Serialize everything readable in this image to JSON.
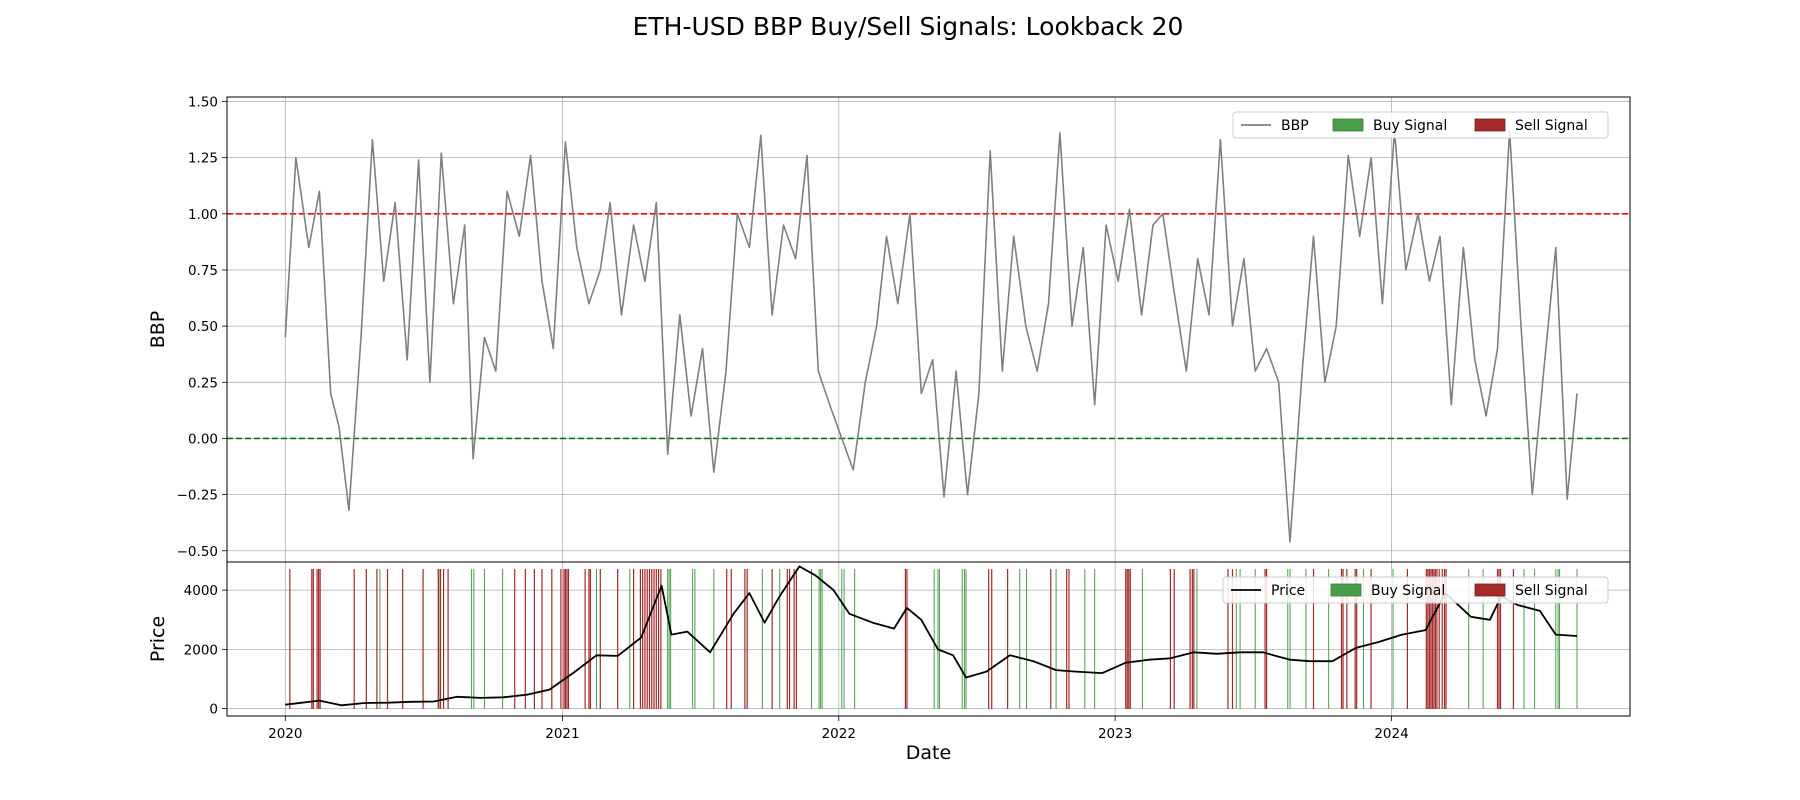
{
  "chart_data": [
    {
      "type": "line",
      "title": "ETH-USD BBP Buy/Sell Signals: Lookback 20",
      "ylabel": "BBP",
      "xlabel": "",
      "xlim": [
        "2019-10-16",
        "2024-11-11"
      ],
      "ylim": [
        -0.55,
        1.52
      ],
      "yticks": [
        1.5,
        1.25,
        1.0,
        0.75,
        0.5,
        0.25,
        0.0,
        -0.25,
        -0.5
      ],
      "ytick_labels": [
        "1.50",
        "1.25",
        "1.00",
        "0.75",
        "0.50",
        "0.25",
        "0.00",
        "−0.25",
        "−0.50"
      ],
      "grid": true,
      "legend_position": "top-right",
      "legend": [
        "BBP",
        "Buy Signal",
        "Sell Signal"
      ],
      "reference_lines": [
        {
          "y": 1.0,
          "color": "#ff0000",
          "style": "dashed"
        },
        {
          "y": 0.0,
          "color": "#008000",
          "style": "dashed"
        }
      ],
      "series": [
        {
          "name": "BBP",
          "color": "#808080",
          "x": [
            "2020-01-01",
            "2020-01-15",
            "2020-02-01",
            "2020-02-15",
            "2020-03-01",
            "2020-03-12",
            "2020-03-25",
            "2020-04-10",
            "2020-04-25",
            "2020-05-10",
            "2020-05-25",
            "2020-06-10",
            "2020-06-25",
            "2020-07-10",
            "2020-07-25",
            "2020-08-10",
            "2020-08-25",
            "2020-09-05",
            "2020-09-20",
            "2020-10-05",
            "2020-10-20",
            "2020-11-05",
            "2020-11-20",
            "2020-12-05",
            "2020-12-20",
            "2021-01-05",
            "2021-01-20",
            "2021-02-05",
            "2021-02-20",
            "2021-03-05",
            "2021-03-20",
            "2021-04-05",
            "2021-04-20",
            "2021-05-05",
            "2021-05-20",
            "2021-06-05",
            "2021-06-20",
            "2021-07-05",
            "2021-07-20",
            "2021-08-05",
            "2021-08-20",
            "2021-09-05",
            "2021-09-20",
            "2021-10-05",
            "2021-10-20",
            "2021-11-05",
            "2021-11-20",
            "2021-12-05",
            "2021-12-20",
            "2022-01-05",
            "2022-01-20",
            "2022-02-05",
            "2022-02-20",
            "2022-03-05",
            "2022-03-20",
            "2022-04-05",
            "2022-04-20",
            "2022-05-05",
            "2022-05-20",
            "2022-06-05",
            "2022-06-20",
            "2022-07-05",
            "2022-07-20",
            "2022-08-05",
            "2022-08-20",
            "2022-09-05",
            "2022-09-20",
            "2022-10-05",
            "2022-10-20",
            "2022-11-05",
            "2022-11-20",
            "2022-12-05",
            "2022-12-20",
            "2023-01-05",
            "2023-01-20",
            "2023-02-05",
            "2023-02-20",
            "2023-03-05",
            "2023-03-20",
            "2023-04-05",
            "2023-04-20",
            "2023-05-05",
            "2023-05-20",
            "2023-06-05",
            "2023-06-20",
            "2023-07-05",
            "2023-07-20",
            "2023-08-05",
            "2023-08-20",
            "2023-09-05",
            "2023-09-20",
            "2023-10-05",
            "2023-10-20",
            "2023-11-05",
            "2023-11-20",
            "2023-12-05",
            "2023-12-20",
            "2024-01-05",
            "2024-01-20",
            "2024-02-05",
            "2024-02-20",
            "2024-03-05",
            "2024-03-20",
            "2024-04-05",
            "2024-04-20",
            "2024-05-05",
            "2024-05-20",
            "2024-06-05",
            "2024-06-20",
            "2024-07-05",
            "2024-07-20",
            "2024-08-05",
            "2024-08-20",
            "2024-09-02"
          ],
          "values": [
            0.45,
            1.25,
            0.85,
            1.1,
            0.2,
            0.05,
            -0.32,
            0.45,
            1.33,
            0.7,
            1.05,
            0.35,
            1.24,
            0.25,
            1.27,
            0.6,
            0.95,
            -0.09,
            0.45,
            0.3,
            1.1,
            0.9,
            1.26,
            0.7,
            0.4,
            1.32,
            0.85,
            0.6,
            0.75,
            1.05,
            0.55,
            0.95,
            0.7,
            1.05,
            -0.07,
            0.55,
            0.1,
            0.4,
            -0.15,
            0.3,
            1.0,
            0.85,
            1.35,
            0.55,
            0.95,
            0.8,
            1.26,
            0.3,
            0.15,
            0.0,
            -0.14,
            0.25,
            0.5,
            0.9,
            0.6,
            1.0,
            0.2,
            0.35,
            -0.26,
            0.3,
            -0.25,
            0.2,
            1.28,
            0.3,
            0.9,
            0.5,
            0.3,
            0.6,
            1.36,
            0.5,
            0.85,
            0.15,
            0.95,
            0.7,
            1.02,
            0.55,
            0.95,
            1.0,
            0.65,
            0.3,
            0.8,
            0.55,
            1.33,
            0.5,
            0.8,
            0.3,
            0.4,
            0.25,
            -0.46,
            0.3,
            0.9,
            0.25,
            0.5,
            1.26,
            0.9,
            1.25,
            0.6,
            1.37,
            0.75,
            1.0,
            0.7,
            0.9,
            0.15,
            0.85,
            0.35,
            0.1,
            0.4,
            1.37,
            0.5,
            -0.25,
            0.3,
            0.85,
            -0.27,
            0.2
          ]
        }
      ]
    },
    {
      "type": "line",
      "title": "",
      "ylabel": "Price",
      "xlabel": "Date",
      "xlim": [
        "2019-10-16",
        "2024-11-11"
      ],
      "ylim": [
        -250,
        4950
      ],
      "yticks": [
        0,
        2000,
        4000
      ],
      "ytick_labels": [
        "0",
        "2000",
        "4000"
      ],
      "xticks": [
        "2020-01-01",
        "2021-01-01",
        "2022-01-01",
        "2023-01-01",
        "2024-01-01"
      ],
      "xtick_labels": [
        "2020",
        "2021",
        "2022",
        "2023",
        "2024"
      ],
      "grid": true,
      "legend_position": "top-right",
      "legend": [
        "Price",
        "Buy Signal",
        "Sell Signal"
      ],
      "series": [
        {
          "name": "Price",
          "color": "#000000",
          "x": [
            "2020-01-01",
            "2020-02-15",
            "2020-03-15",
            "2020-04-15",
            "2020-05-15",
            "2020-06-15",
            "2020-07-15",
            "2020-08-15",
            "2020-09-15",
            "2020-10-15",
            "2020-11-15",
            "2020-12-15",
            "2021-01-15",
            "2021-02-15",
            "2021-03-15",
            "2021-04-15",
            "2021-05-12",
            "2021-05-25",
            "2021-06-15",
            "2021-07-15",
            "2021-08-15",
            "2021-09-05",
            "2021-09-25",
            "2021-10-15",
            "2021-11-10",
            "2021-12-01",
            "2021-12-25",
            "2022-01-15",
            "2022-02-15",
            "2022-03-15",
            "2022-04-01",
            "2022-04-20",
            "2022-05-12",
            "2022-06-01",
            "2022-06-18",
            "2022-07-15",
            "2022-08-15",
            "2022-09-15",
            "2022-10-15",
            "2022-11-10",
            "2022-12-15",
            "2023-01-15",
            "2023-02-15",
            "2023-03-15",
            "2023-04-15",
            "2023-05-15",
            "2023-06-15",
            "2023-07-15",
            "2023-08-20",
            "2023-09-15",
            "2023-10-15",
            "2023-11-15",
            "2023-12-15",
            "2024-01-15",
            "2024-02-15",
            "2024-03-12",
            "2024-04-15",
            "2024-05-10",
            "2024-05-25",
            "2024-06-15",
            "2024-07-15",
            "2024-08-05",
            "2024-09-02"
          ],
          "values": [
            130,
            270,
            110,
            190,
            200,
            230,
            240,
            400,
            360,
            380,
            470,
            640,
            1200,
            1800,
            1780,
            2400,
            4150,
            2500,
            2600,
            1900,
            3200,
            3900,
            2900,
            3800,
            4800,
            4500,
            4000,
            3200,
            2900,
            2700,
            3400,
            3000,
            2000,
            1800,
            1050,
            1250,
            1800,
            1600,
            1300,
            1250,
            1200,
            1550,
            1650,
            1700,
            1900,
            1850,
            1900,
            1900,
            1650,
            1600,
            1600,
            2050,
            2250,
            2500,
            2650,
            3900,
            3100,
            3000,
            3800,
            3500,
            3300,
            2500,
            2450
          ]
        }
      ],
      "buy_signals": [
        "2020-05-05",
        "2020-07-22",
        "2020-09-03",
        "2020-09-06",
        "2020-09-20",
        "2020-10-14",
        "2021-02-15",
        "2021-03-31",
        "2021-05-20",
        "2021-05-22",
        "2021-05-24",
        "2021-06-22",
        "2021-06-25",
        "2021-07-20",
        "2021-09-22",
        "2021-10-15",
        "2021-11-26",
        "2021-12-06",
        "2021-12-08",
        "2021-12-10",
        "2022-01-05",
        "2022-01-08",
        "2022-01-22",
        "2022-05-07",
        "2022-05-12",
        "2022-05-14",
        "2022-06-13",
        "2022-06-16",
        "2022-06-18",
        "2022-08-28",
        "2022-09-06",
        "2022-10-15",
        "2022-11-22",
        "2022-12-05",
        "2023-02-06",
        "2023-04-19",
        "2023-06-10",
        "2023-06-15",
        "2023-07-05",
        "2023-08-17",
        "2023-08-20",
        "2023-09-10",
        "2023-10-10",
        "2023-11-25",
        "2024-01-03",
        "2024-04-12",
        "2024-05-01",
        "2024-06-24",
        "2024-07-08",
        "2024-08-05",
        "2024-08-08",
        "2024-08-10",
        "2024-09-02"
      ],
      "sell_signals": [
        "2020-01-07",
        "2020-02-05",
        "2020-02-07",
        "2020-02-12",
        "2020-02-14",
        "2020-02-16",
        "2020-04-01",
        "2020-04-17",
        "2020-05-01",
        "2020-05-15",
        "2020-06-04",
        "2020-07-01",
        "2020-07-21",
        "2020-07-24",
        "2020-07-28",
        "2020-08-03",
        "2020-10-30",
        "2020-11-13",
        "2020-11-25",
        "2020-12-05",
        "2020-12-18",
        "2020-12-30",
        "2021-01-03",
        "2021-01-05",
        "2021-01-07",
        "2021-01-09",
        "2021-01-31",
        "2021-02-05",
        "2021-02-07",
        "2021-02-20",
        "2021-03-15",
        "2021-04-05",
        "2021-04-14",
        "2021-04-17",
        "2021-04-20",
        "2021-04-23",
        "2021-04-26",
        "2021-04-29",
        "2021-05-02",
        "2021-05-05",
        "2021-05-08",
        "2021-05-11",
        "2021-08-06",
        "2021-08-12",
        "2021-08-30",
        "2021-09-02",
        "2021-10-05",
        "2021-10-25",
        "2021-10-28",
        "2021-11-03",
        "2021-11-06",
        "2022-03-30",
        "2022-04-01",
        "2022-07-18",
        "2022-07-22",
        "2022-08-12",
        "2022-10-08",
        "2022-10-29",
        "2022-11-01",
        "2023-01-15",
        "2023-01-17",
        "2023-01-19",
        "2023-01-21",
        "2023-03-15",
        "2023-03-20",
        "2023-04-10",
        "2023-04-13",
        "2023-04-15",
        "2023-05-30",
        "2023-06-05",
        "2023-07-18",
        "2023-07-20",
        "2023-09-20",
        "2023-10-27",
        "2023-10-29",
        "2023-11-03",
        "2023-11-14",
        "2023-11-16",
        "2023-12-05",
        "2024-01-22",
        "2024-02-16",
        "2024-02-18",
        "2024-02-20",
        "2024-02-22",
        "2024-02-24",
        "2024-02-26",
        "2024-02-28",
        "2024-03-01",
        "2024-03-04",
        "2024-03-08",
        "2024-03-11",
        "2024-03-13",
        "2024-05-20",
        "2024-05-22",
        "2024-05-24",
        "2024-06-10"
      ]
    }
  ]
}
